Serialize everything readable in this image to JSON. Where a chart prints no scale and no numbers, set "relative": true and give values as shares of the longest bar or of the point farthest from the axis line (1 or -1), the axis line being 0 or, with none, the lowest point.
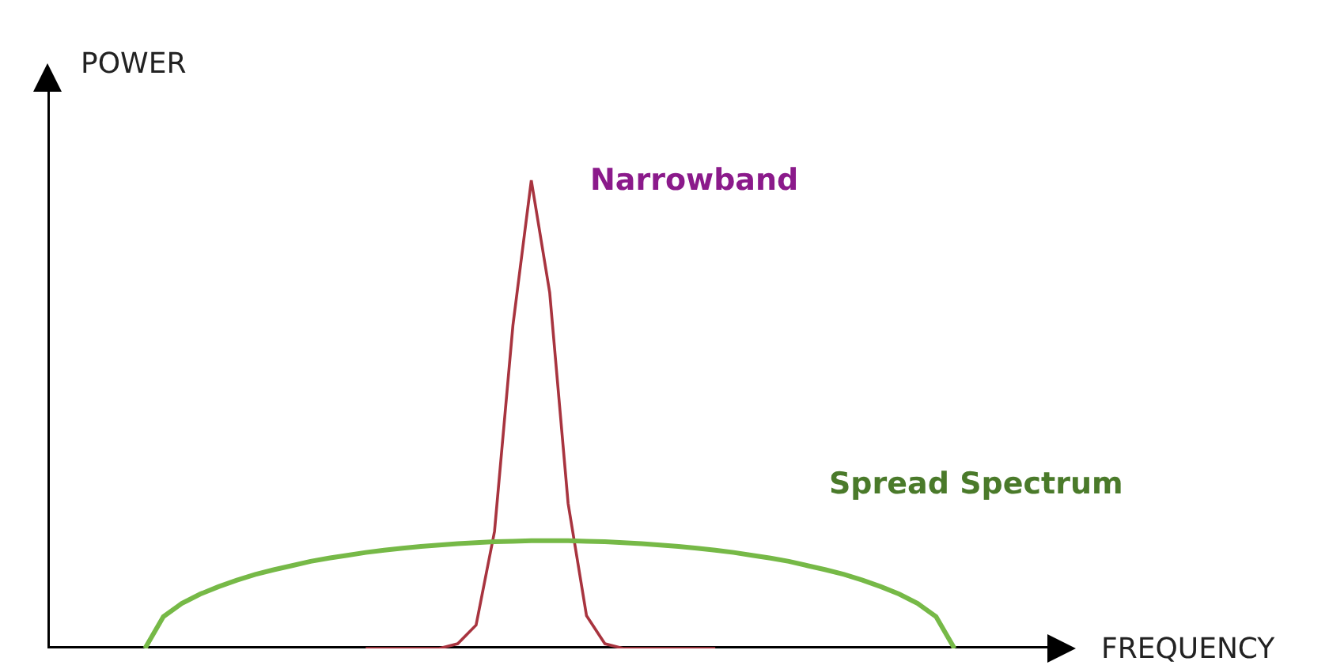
{
  "chart_data": {
    "type": "line",
    "relative": true,
    "xlabel": "FREQUENCY",
    "ylabel": "POWER",
    "legend": false,
    "marker": "none",
    "line_style": "solid",
    "categories": [
      null,
      null,
      null,
      null,
      null,
      null,
      null,
      null,
      null,
      null,
      null,
      null,
      null,
      null,
      null,
      null,
      null,
      null,
      null,
      null,
      null,
      null,
      null,
      null,
      null,
      null,
      null,
      null,
      null,
      null,
      null,
      null,
      null,
      null,
      null,
      null,
      null,
      null,
      null,
      null,
      null,
      null,
      null,
      null,
      null,
      null,
      null,
      null,
      null,
      null,
      null,
      null,
      null,
      null,
      null
    ],
    "series": [
      {
        "name": "Narrowband",
        "color": "#a8343f",
        "values": [
          null,
          null,
          null,
          null,
          null,
          null,
          null,
          null,
          null,
          null,
          null,
          null,
          null,
          null,
          null,
          null,
          0,
          0,
          0,
          0,
          0,
          0.01,
          0.05,
          0.25,
          0.69,
          1,
          0.76,
          0.31,
          0.07,
          0.01,
          0,
          0,
          0,
          0,
          0,
          0,
          null,
          null,
          null,
          null,
          null,
          null,
          null,
          null,
          null,
          null,
          null,
          null,
          null,
          null,
          null,
          null,
          null,
          null,
          null
        ]
      },
      {
        "name": "Spread Spectrum",
        "color": "#76b947",
        "values": [
          null,
          null,
          null,
          null,
          0,
          0.068,
          0.096,
          0.116,
          0.132,
          0.146,
          0.158,
          0.168,
          0.177,
          0.186,
          0.193,
          0.199,
          0.205,
          0.21,
          0.214,
          0.218,
          0.221,
          0.224,
          0.226,
          0.228,
          0.229,
          0.23,
          0.23,
          0.23,
          0.229,
          0.228,
          0.226,
          0.224,
          0.221,
          0.218,
          0.214,
          0.21,
          0.205,
          0.199,
          0.193,
          0.186,
          0.177,
          0.168,
          0.158,
          0.146,
          0.132,
          0.116,
          0.096,
          0.068,
          0,
          null,
          null,
          null,
          null,
          null,
          null
        ]
      }
    ]
  }
}
